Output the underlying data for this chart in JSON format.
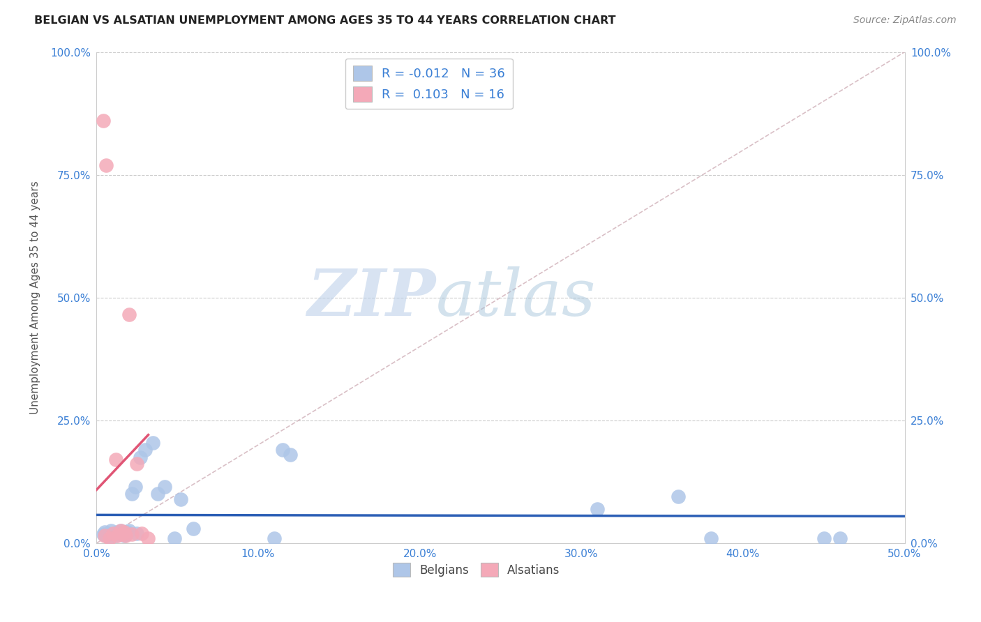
{
  "title": "BELGIAN VS ALSATIAN UNEMPLOYMENT AMONG AGES 35 TO 44 YEARS CORRELATION CHART",
  "source": "Source: ZipAtlas.com",
  "ylabel": "Unemployment Among Ages 35 to 44 years",
  "xlim": [
    0.0,
    0.5
  ],
  "ylim": [
    0.0,
    1.0
  ],
  "xticks": [
    0.0,
    0.1,
    0.2,
    0.3,
    0.4,
    0.5
  ],
  "yticks": [
    0.0,
    0.25,
    0.5,
    0.75,
    1.0
  ],
  "xtick_labels": [
    "0.0%",
    "10.0%",
    "20.0%",
    "30.0%",
    "40.0%",
    "50.0%"
  ],
  "ytick_labels": [
    "0.0%",
    "25.0%",
    "50.0%",
    "75.0%",
    "100.0%"
  ],
  "belgian_color": "#aec6e8",
  "alsatian_color": "#f4a9b8",
  "belgian_line_color": "#2b5eb5",
  "alsatian_line_color": "#e05575",
  "ref_line_color": "#d0b0b8",
  "belgian_R": -0.012,
  "belgian_N": 36,
  "alsatian_R": 0.103,
  "alsatian_N": 16,
  "watermark_zip": "ZIP",
  "watermark_atlas": "atlas",
  "background_color": "#ffffff",
  "grid_color": "#cccccc",
  "belgian_x": [
    0.004,
    0.005,
    0.006,
    0.007,
    0.008,
    0.009,
    0.01,
    0.011,
    0.012,
    0.013,
    0.014,
    0.015,
    0.016,
    0.017,
    0.018,
    0.019,
    0.02,
    0.022,
    0.024,
    0.025,
    0.027,
    0.03,
    0.035,
    0.038,
    0.042,
    0.048,
    0.052,
    0.06,
    0.11,
    0.115,
    0.12,
    0.31,
    0.36,
    0.38,
    0.45,
    0.46
  ],
  "belgian_y": [
    0.018,
    0.022,
    0.015,
    0.02,
    0.012,
    0.025,
    0.018,
    0.02,
    0.015,
    0.022,
    0.018,
    0.025,
    0.02,
    0.015,
    0.018,
    0.022,
    0.025,
    0.1,
    0.115,
    0.02,
    0.175,
    0.19,
    0.205,
    0.1,
    0.115,
    0.01,
    0.09,
    0.03,
    0.01,
    0.19,
    0.18,
    0.07,
    0.095,
    0.01,
    0.01,
    0.01
  ],
  "alsatian_x": [
    0.004,
    0.005,
    0.006,
    0.008,
    0.01,
    0.012,
    0.013,
    0.015,
    0.016,
    0.017,
    0.018,
    0.02,
    0.022,
    0.025,
    0.028,
    0.032
  ],
  "alsatian_y": [
    0.86,
    0.015,
    0.77,
    0.01,
    0.02,
    0.17,
    0.015,
    0.025,
    0.018,
    0.022,
    0.015,
    0.465,
    0.018,
    0.162,
    0.02,
    0.01
  ]
}
